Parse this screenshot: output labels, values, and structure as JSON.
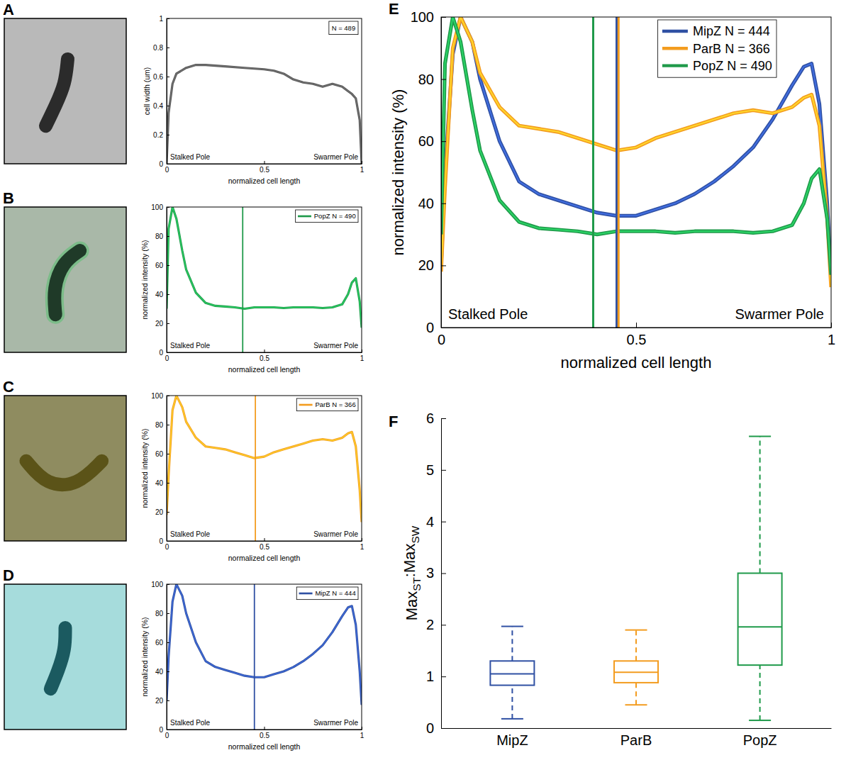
{
  "chart_data": [
    {
      "panel": "A",
      "type": "line",
      "xlabel": "normalized cell length",
      "ylabel": "cell width (um)",
      "xlim": [
        0,
        1
      ],
      "ylim": [
        0,
        1
      ],
      "xticks": [
        0,
        0.5,
        1
      ],
      "yticks": [
        0,
        0.2,
        0.4,
        0.6,
        0.8,
        1
      ],
      "note": "N = 489",
      "annotations": [
        "Stalked Pole",
        "Swarmer Pole"
      ],
      "x": [
        0,
        0.01,
        0.03,
        0.05,
        0.1,
        0.15,
        0.2,
        0.3,
        0.4,
        0.5,
        0.55,
        0.6,
        0.65,
        0.7,
        0.75,
        0.8,
        0.85,
        0.9,
        0.93,
        0.95,
        0.97,
        0.99,
        1
      ],
      "series": [
        {
          "color": "#555555",
          "values": [
            0,
            0.35,
            0.55,
            0.62,
            0.66,
            0.68,
            0.68,
            0.67,
            0.66,
            0.65,
            0.64,
            0.62,
            0.58,
            0.56,
            0.55,
            0.53,
            0.55,
            0.53,
            0.5,
            0.48,
            0.45,
            0.3,
            0
          ]
        }
      ]
    },
    {
      "panel": "B",
      "type": "line",
      "xlabel": "normalized cell length",
      "ylabel": "normalized intensity (%)",
      "xlim": [
        0,
        1
      ],
      "ylim": [
        0,
        100
      ],
      "xticks": [
        0,
        0.5,
        1
      ],
      "yticks": [
        0,
        20,
        40,
        60,
        80,
        100
      ],
      "legend": "upper right",
      "annotations": [
        "Stalked Pole",
        "Swarmer Pole"
      ],
      "x": [
        0,
        0.01,
        0.03,
        0.05,
        0.08,
        0.1,
        0.15,
        0.2,
        0.25,
        0.3,
        0.35,
        0.4,
        0.45,
        0.5,
        0.55,
        0.6,
        0.65,
        0.7,
        0.75,
        0.8,
        0.85,
        0.9,
        0.93,
        0.95,
        0.97,
        0.99,
        1
      ],
      "series": [
        {
          "name": "PopZ N = 490",
          "color": "#1f9a4a",
          "vline": 0.39,
          "values": [
            30,
            85,
            100,
            92,
            70,
            57,
            41,
            34,
            32,
            31.5,
            31,
            30,
            31,
            31,
            31,
            30.5,
            31,
            31,
            31,
            30.5,
            31,
            33,
            40,
            48,
            51,
            35,
            17
          ]
        }
      ]
    },
    {
      "panel": "C",
      "type": "line",
      "xlabel": "normalized cell length",
      "ylabel": "normalized intensity (%)",
      "xlim": [
        0,
        1
      ],
      "ylim": [
        0,
        100
      ],
      "xticks": [
        0,
        0.5,
        1
      ],
      "yticks": [
        0,
        20,
        40,
        60,
        80,
        100
      ],
      "legend": "upper right",
      "annotations": [
        "Stalked Pole",
        "Swarmer Pole"
      ],
      "x": [
        0,
        0.01,
        0.03,
        0.05,
        0.08,
        0.1,
        0.15,
        0.2,
        0.25,
        0.3,
        0.35,
        0.4,
        0.45,
        0.5,
        0.55,
        0.6,
        0.65,
        0.7,
        0.75,
        0.8,
        0.85,
        0.9,
        0.93,
        0.95,
        0.97,
        0.99,
        1
      ],
      "series": [
        {
          "name": "ParB N = 366",
          "color": "#f39c1f",
          "vline": 0.455,
          "values": [
            18,
            45,
            90,
            100,
            92,
            82,
            71,
            65,
            64,
            63,
            61,
            59,
            57,
            58,
            61,
            63,
            65,
            67,
            69,
            70,
            69,
            71,
            74,
            75,
            65,
            35,
            13
          ]
        }
      ]
    },
    {
      "panel": "D",
      "type": "line",
      "xlabel": "normalized cell length",
      "ylabel": "normalized intensity (%)",
      "xlim": [
        0,
        1
      ],
      "ylim": [
        0,
        100
      ],
      "xticks": [
        0,
        0.5,
        1
      ],
      "yticks": [
        0,
        20,
        40,
        60,
        80,
        100
      ],
      "legend": "upper right",
      "annotations": [
        "Stalked Pole",
        "Swarmer Pole"
      ],
      "x": [
        0,
        0.01,
        0.03,
        0.05,
        0.08,
        0.1,
        0.15,
        0.2,
        0.25,
        0.3,
        0.35,
        0.4,
        0.45,
        0.5,
        0.55,
        0.6,
        0.65,
        0.7,
        0.75,
        0.8,
        0.85,
        0.9,
        0.93,
        0.95,
        0.97,
        0.99,
        1
      ],
      "series": [
        {
          "name": "MipZ N = 444",
          "color": "#2f50a3",
          "vline": 0.45,
          "values": [
            20,
            50,
            88,
            100,
            92,
            80,
            60,
            47,
            43,
            41,
            39,
            37,
            36,
            36,
            38,
            40,
            43,
            47,
            52,
            58,
            67,
            78,
            84,
            85,
            72,
            40,
            17
          ]
        }
      ]
    },
    {
      "panel": "E",
      "type": "line",
      "xlabel": "normalized cell length",
      "ylabel": "normalized intensity (%)",
      "xlim": [
        0,
        1
      ],
      "ylim": [
        0,
        100
      ],
      "xticks": [
        0,
        0.5,
        1
      ],
      "yticks": [
        0,
        20,
        40,
        60,
        80,
        100
      ],
      "legend": "upper right",
      "annotations": [
        "Stalked Pole",
        "Swarmer Pole"
      ],
      "x": [
        0,
        0.01,
        0.03,
        0.05,
        0.08,
        0.1,
        0.15,
        0.2,
        0.25,
        0.3,
        0.35,
        0.4,
        0.45,
        0.5,
        0.55,
        0.6,
        0.65,
        0.7,
        0.75,
        0.8,
        0.85,
        0.9,
        0.93,
        0.95,
        0.97,
        0.99,
        1
      ],
      "series": [
        {
          "name": "MipZ N = 444",
          "color": "#2f50a3",
          "vline": 0.45,
          "values": [
            20,
            50,
            88,
            100,
            92,
            80,
            60,
            47,
            43,
            41,
            39,
            37,
            36,
            36,
            38,
            40,
            43,
            47,
            52,
            58,
            67,
            78,
            84,
            85,
            72,
            40,
            17
          ]
        },
        {
          "name": "ParB N = 366",
          "color": "#f39c1f",
          "vline": 0.455,
          "values": [
            18,
            45,
            90,
            100,
            92,
            82,
            71,
            65,
            64,
            63,
            61,
            59,
            57,
            58,
            61,
            63,
            65,
            67,
            69,
            70,
            69,
            71,
            74,
            75,
            65,
            35,
            13
          ]
        },
        {
          "name": "PopZ N = 490",
          "color": "#1f9a4a",
          "vline": 0.39,
          "values": [
            30,
            85,
            100,
            92,
            70,
            57,
            41,
            34,
            32,
            31.5,
            31,
            30,
            31,
            31,
            31,
            30.5,
            31,
            31,
            31,
            30.5,
            31,
            33,
            40,
            48,
            51,
            35,
            17
          ]
        }
      ]
    },
    {
      "panel": "F",
      "type": "box",
      "ylabel": [
        "Max",
        "ST",
        ":Max",
        "SW"
      ],
      "ylim": [
        0,
        6
      ],
      "yticks": [
        0,
        1,
        2,
        3,
        4,
        5,
        6
      ],
      "categories": [
        "MipZ",
        "ParB",
        "PopZ"
      ],
      "colors": [
        "#2f50a3",
        "#f39c1f",
        "#1f9a4a"
      ],
      "line_style": "dashed",
      "boxes": [
        {
          "low": 0.18,
          "q1": 0.83,
          "median": 1.05,
          "q3": 1.3,
          "high": 1.97
        },
        {
          "low": 0.45,
          "q1": 0.88,
          "median": 1.08,
          "q3": 1.3,
          "high": 1.9
        },
        {
          "low": 0.15,
          "q1": 1.22,
          "median": 1.96,
          "q3": 3.0,
          "high": 5.65
        }
      ]
    }
  ]
}
